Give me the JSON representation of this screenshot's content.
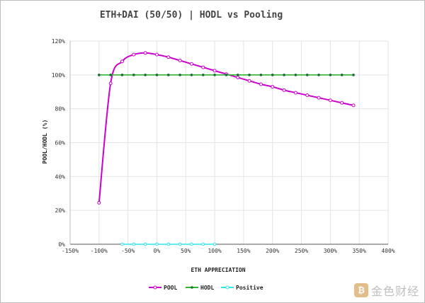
{
  "chart_data": {
    "type": "line",
    "title": "ETH+DAI (50/50) | HODL vs Pooling",
    "xlabel": "ETH APPRECIATION",
    "ylabel": "POOL/HODL (%)",
    "xlim": [
      -150,
      400
    ],
    "ylim": [
      0,
      120
    ],
    "x_ticks": [
      "-150%",
      "-100%",
      "-50%",
      "0%",
      "50%",
      "100%",
      "150%",
      "200%",
      "250%",
      "300%",
      "350%",
      "400%"
    ],
    "y_ticks": [
      "0%",
      "20%",
      "40%",
      "60%",
      "80%",
      "100%",
      "120%"
    ],
    "grid": true,
    "legend_position": "bottom",
    "series": [
      {
        "name": "POOL",
        "color": "#cc00cc",
        "x": [
          -100,
          -80,
          -60,
          -40,
          -20,
          0,
          20,
          40,
          60,
          80,
          100,
          120,
          140,
          160,
          180,
          200,
          220,
          240,
          260,
          280,
          300,
          320,
          340
        ],
        "y": [
          24.5,
          95,
          108,
          112,
          113,
          112,
          110.5,
          108.5,
          106.5,
          104.5,
          102.5,
          100.5,
          98.5,
          96.5,
          94.5,
          93,
          91,
          89.5,
          88,
          86.5,
          85,
          83.5,
          82
        ]
      },
      {
        "name": "HODL",
        "color": "#2eb82e",
        "x": [
          -100,
          -80,
          -60,
          -40,
          -20,
          0,
          20,
          40,
          60,
          80,
          100,
          120,
          140,
          160,
          180,
          200,
          220,
          240,
          260,
          280,
          300,
          320,
          340
        ],
        "y": [
          100,
          100,
          100,
          100,
          100,
          100,
          100,
          100,
          100,
          100,
          100,
          100,
          100,
          100,
          100,
          100,
          100,
          100,
          100,
          100,
          100,
          100,
          100
        ]
      },
      {
        "name": "Positive",
        "color": "#33e6e6",
        "x": [
          -60,
          -40,
          -20,
          0,
          20,
          40,
          60,
          80,
          100
        ],
        "y": [
          0,
          0,
          0,
          0,
          0,
          0,
          0,
          0,
          0
        ]
      }
    ]
  },
  "watermark": {
    "logo_glyph": "₿",
    "text": "金色财经"
  }
}
